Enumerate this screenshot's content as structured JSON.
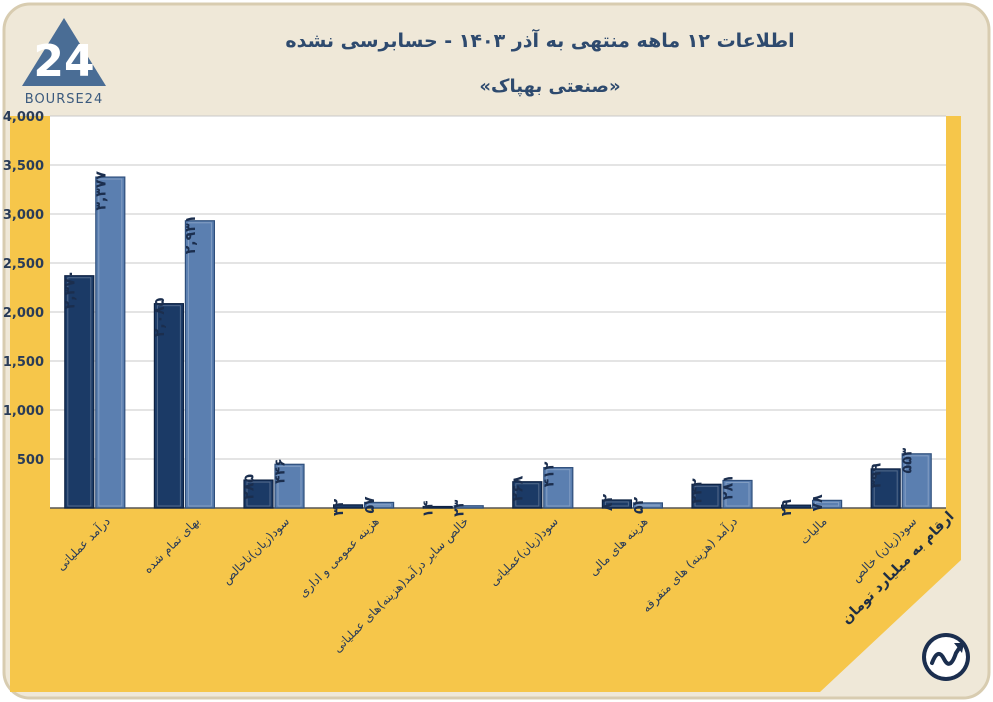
{
  "header": {
    "title": "اطلاعات ۱۲ ماهه منتهی به آذر ۱۴۰۳ - حسابرسی نشده",
    "subtitle": "«صنعتی بهپاک»",
    "brand_text": "BOURSE24",
    "brand_logo_text": "24",
    "note": "ارقام به میلیارد تومان"
  },
  "colors": {
    "background": "#f6c64a",
    "panel": "#efe8d8",
    "series_dark": "#1b3a66",
    "series_light": "#5b7fb0",
    "axis_text": "#2a3c58"
  },
  "chart_data": {
    "type": "bar",
    "title": "",
    "xlabel": "",
    "ylabel": "",
    "ylim": [
      0,
      4000
    ],
    "yticks": [
      500,
      1000,
      1500,
      2000,
      2500,
      3000,
      3500,
      4000
    ],
    "ytick_labels": [
      "500",
      "1,000",
      "1,500",
      "2,000",
      "2,500",
      "3,000",
      "3,500",
      "4,000"
    ],
    "grid": true,
    "categories": [
      "درآمد عملیاتی",
      "بهای تمام شده",
      "سود(زیان)ناخالص",
      "هزینه عمومی و اداری",
      "خالص سایر درآمد(هزینه)های عملیاتی",
      "سود(زیان)عملیاتی",
      "هزینه های مالی",
      "درآمد (هزینه) های متفرقه",
      "مالیات",
      "سود(زیان) خالص"
    ],
    "series": [
      {
        "values": [
          2370,
          2085,
          285,
          32,
          14,
          268,
          82,
          242,
          29,
          399
        ],
        "labels": [
          "۲,۳۷۰",
          "۲,۰۸۵",
          "۲۸۵",
          "۳۲",
          "۱۴",
          "۲۶۸",
          "۸۲",
          "۲۴۲",
          "۲۹",
          "۳۹۹"
        ]
      },
      {
        "values": [
          3377,
          2931,
          446,
          57,
          23,
          412,
          52,
          281,
          78,
          553
        ],
        "labels": [
          "۳,۳۷۷",
          "۲,۹۳۱",
          "۴۴۶",
          "۵۷",
          "۲۳",
          "۴۱۲",
          "۵۲",
          "۲۸۱",
          "۷۸",
          "۵۵۳"
        ]
      }
    ]
  }
}
